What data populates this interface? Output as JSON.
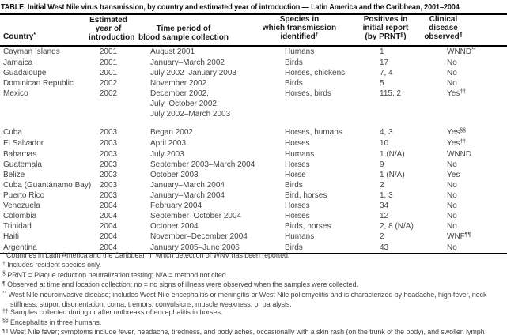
{
  "title": "TABLE. Initial West Nile virus transmission, by country and estimated year of introduction — Latin America and the Caribbean, 2001–2004",
  "colors": {
    "background": "#ffffff",
    "rule": "#000000",
    "body_text": "#454545",
    "heading_text": "#1b1b1b"
  },
  "table": {
    "columns": [
      {
        "id": "country",
        "header_lines": [
          "Country^{*}"
        ]
      },
      {
        "id": "year",
        "header_lines": [
          "Estimated",
          "year of",
          "introduction"
        ]
      },
      {
        "id": "period",
        "header_lines": [
          "Time period of",
          "blood sample collection"
        ]
      },
      {
        "id": "species",
        "header_lines": [
          "Species in",
          "which transmission",
          "identified^{†}"
        ]
      },
      {
        "id": "positives",
        "header_lines": [
          "Positives in",
          "initial report",
          "(by PRNT^{§})"
        ]
      },
      {
        "id": "clinical",
        "header_lines": [
          "Clinical",
          "disease",
          "observed^{¶}"
        ]
      }
    ],
    "rows": [
      {
        "country": "Cayman Islands",
        "year": "2001",
        "period": [
          "August 2001"
        ],
        "species": "Humans",
        "positives": "1",
        "clinical": "WNND^{**}"
      },
      {
        "country": "Jamaica",
        "year": "2001",
        "period": [
          "January–March 2002"
        ],
        "species": "Birds",
        "positives": "17",
        "clinical": "No"
      },
      {
        "country": "Guadaloupe",
        "year": "2001",
        "period": [
          "July 2002–January 2003"
        ],
        "species": "Horses, chickens",
        "positives": "7, 4",
        "clinical": "No"
      },
      {
        "country": "Dominican Republic",
        "year": "2002",
        "period": [
          "November 2002"
        ],
        "species": "Birds",
        "positives": "5",
        "clinical": "No"
      },
      {
        "country": "Mexico",
        "year": "2002",
        "period": [
          "December 2002,",
          "July–October 2002,",
          "July 2002–March 2003"
        ],
        "species": "Horses, birds",
        "positives": "115, 2",
        "clinical": "Yes^{††}",
        "gap_after": true
      },
      {
        "country": "Cuba",
        "year": "2003",
        "period": [
          "Began 2002"
        ],
        "species": "Horses, humans",
        "positives": "4, 3",
        "clinical": "Yes^{§§}"
      },
      {
        "country": "El Salvador",
        "year": "2003",
        "period": [
          "April 2003"
        ],
        "species": "Horses",
        "positives": "10",
        "clinical": "Yes^{††}"
      },
      {
        "country": "Bahamas",
        "year": "2003",
        "period": [
          "July 2003"
        ],
        "species": "Humans",
        "positives": "1 (N/A)",
        "clinical": "WNND"
      },
      {
        "country": "Guatemala",
        "year": "2003",
        "period": [
          "September 2003–March 2004"
        ],
        "species": "Horses",
        "positives": "9",
        "clinical": "No"
      },
      {
        "country": "Belize",
        "year": "2003",
        "period": [
          "October 2003"
        ],
        "species": "Horse",
        "positives": "1 (N/A)",
        "clinical": "Yes"
      },
      {
        "country": "Cuba (Guantánamo Bay)",
        "year": "2003",
        "period": [
          "January–March 2004"
        ],
        "species": "Birds",
        "positives": "2",
        "clinical": "No"
      },
      {
        "country": "Puerto Rico",
        "year": "2003",
        "period": [
          "January–March 2004"
        ],
        "species": "Bird, horses",
        "positives": "1, 3",
        "clinical": "No"
      },
      {
        "country": "Venezuela",
        "year": "2004",
        "period": [
          "February 2004"
        ],
        "species": "Horses",
        "positives": "34",
        "clinical": "No"
      },
      {
        "country": "Colombia",
        "year": "2004",
        "period": [
          "September–October 2004"
        ],
        "species": "Horses",
        "positives": "12",
        "clinical": "No"
      },
      {
        "country": "Trinidad",
        "year": "2004",
        "period": [
          "October 2004"
        ],
        "species": "Birds, horses",
        "positives": "2, 8 (N/A)",
        "clinical": "No"
      },
      {
        "country": "Haiti",
        "year": "2004",
        "period": [
          "November–December 2004"
        ],
        "species": "Humans",
        "positives": "2",
        "clinical": "WNF^{¶¶}"
      },
      {
        "country": "Argentina",
        "year": "2004",
        "period": [
          "January 2005–June 2006"
        ],
        "species": "Birds",
        "positives": "43",
        "clinical": "No"
      }
    ]
  },
  "footnotes": [
    {
      "marker": "*",
      "text": "Countries in Latin America and the Caribbean in which detection of WNV has been reported."
    },
    {
      "marker": "†",
      "text": "Includes resident species only."
    },
    {
      "marker": "§",
      "text": "PRNT = Plaque reduction neutralization testing; N/A = method not cited."
    },
    {
      "marker": "¶",
      "text": "Observed at time and location collection; no = no signs of illness were observed when the samples were collected."
    },
    {
      "marker": "**",
      "text": "West Nile neuroinvasive disease; includes West Nile encephalitis or meningitis or West Nile poliomyelitis and is characterized by headache, high fever, neck stiffness, stupor, disorientation, coma, tremors, convulsions, muscle weakness, or paralysis."
    },
    {
      "marker": "††",
      "text": "Samples collected during or after outbreaks of encephalitis in horses."
    },
    {
      "marker": "§§",
      "text": "Encephalitis in three humans."
    },
    {
      "marker": "¶¶",
      "text": "West Nile fever; symptoms include fever, headache, tiredness, and body aches, occasionally with a skin rash (on the trunk of the body), and swollen lymph glands."
    }
  ]
}
